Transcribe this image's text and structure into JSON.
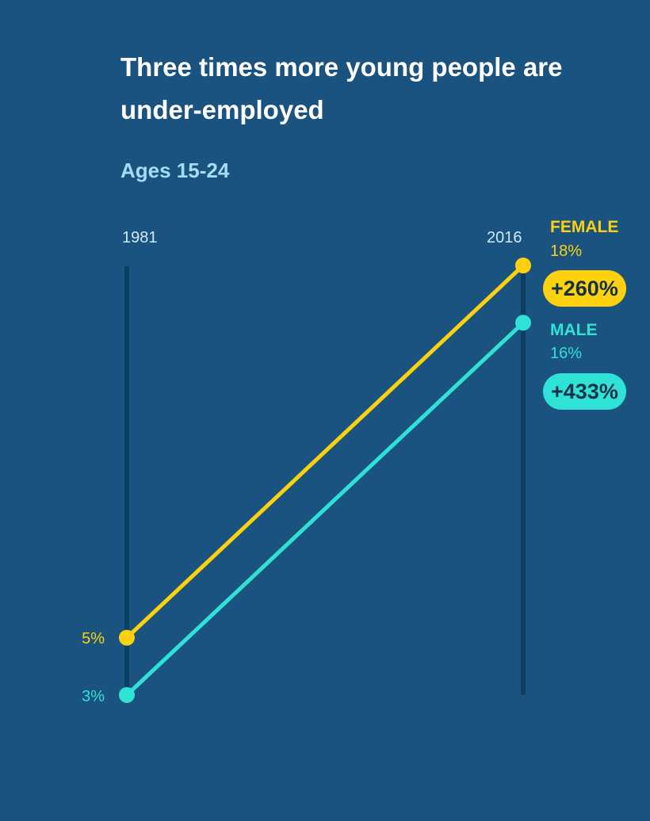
{
  "header": {
    "title": "Three times more young people are under-employed",
    "subtitle": "Ages 15-24"
  },
  "colors": {
    "background": "#1a5380",
    "axis": "#0b3d63",
    "female": "#fdd20c",
    "male": "#2fe2d6"
  },
  "chart_data": {
    "type": "line",
    "title": "Three times more young people are under-employed",
    "subtitle": "Ages 15-24",
    "x": [
      "1981",
      "2016"
    ],
    "ylim": [
      3,
      18
    ],
    "series": [
      {
        "name": "FEMALE",
        "values": [
          5,
          18
        ],
        "start_label": "5%",
        "end_label": "18%",
        "change": "+260%",
        "color": "#fdd20c"
      },
      {
        "name": "MALE",
        "values": [
          3,
          16
        ],
        "start_label": "3%",
        "end_label": "16%",
        "change": "+433%",
        "color": "#2fe2d6"
      }
    ],
    "grid": false
  }
}
